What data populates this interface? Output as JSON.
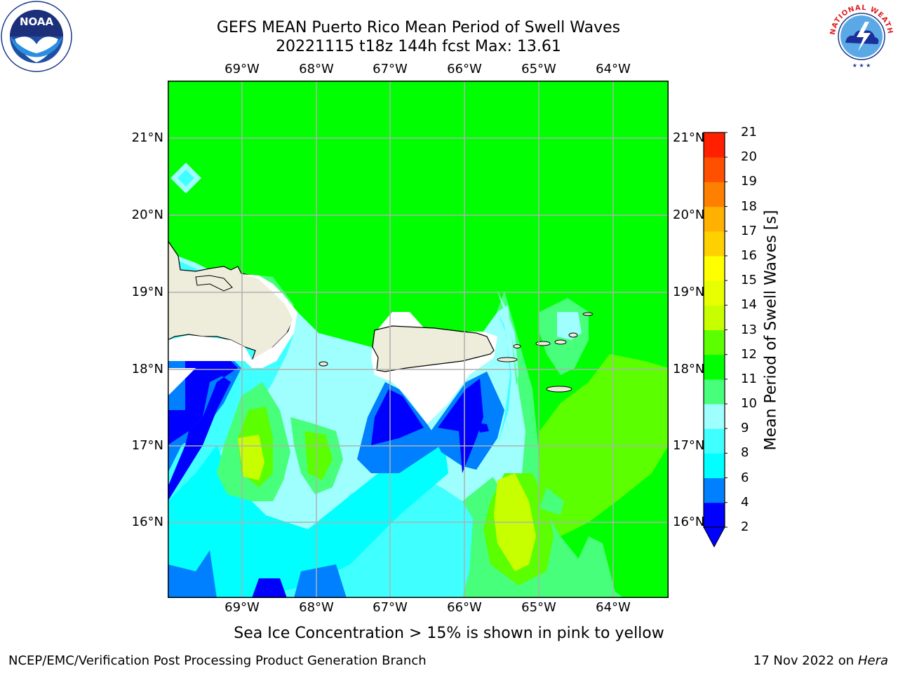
{
  "title": {
    "line1": "GEFS MEAN Puerto Rico Mean Period of Swell Waves",
    "line2": "20221115 t18z 144h fcst   Max: 13.61"
  },
  "logos": {
    "left": {
      "icon": "noaa-logo-icon",
      "text": "NOAA"
    },
    "right": {
      "icon": "nws-logo-icon",
      "text": "NATIONAL WEATHER SERVICE"
    }
  },
  "map": {
    "projection": "lat-lon",
    "lon_labels": [
      "69°W",
      "68°W",
      "67°W",
      "66°W",
      "65°W",
      "64°W"
    ],
    "lat_labels": [
      "21°N",
      "20°N",
      "19°N",
      "18°N",
      "17°N",
      "16°N"
    ],
    "gridlines": true,
    "land_color": "#eeecda",
    "coastline_color": "#000000"
  },
  "colorbar": {
    "title": "Mean Period of Swell Waves [s]",
    "levels": [
      "2",
      "4",
      "6",
      "8",
      "9",
      "10",
      "11",
      "12",
      "13",
      "14",
      "15",
      "16",
      "17",
      "18",
      "19",
      "20",
      "21"
    ],
    "colors": [
      "#0000ff",
      "#0080ff",
      "#00ffff",
      "#40ffff",
      "#9ffffe",
      "#47ff7a",
      "#00ff00",
      "#5bff00",
      "#c8ff00",
      "#e7ff00",
      "#ffff00",
      "#ffd000",
      "#ffb000",
      "#ff8000",
      "#ff5000",
      "#ff2000",
      "#ff0000"
    ],
    "extend": "min"
  },
  "note": "Sea Ice Concentration > 15% is shown in pink to yellow",
  "footer": {
    "left": "NCEP/EMC/Verification Post Processing Product Generation Branch",
    "date": "17 Nov 2022 on",
    "machine": "Hera"
  }
}
